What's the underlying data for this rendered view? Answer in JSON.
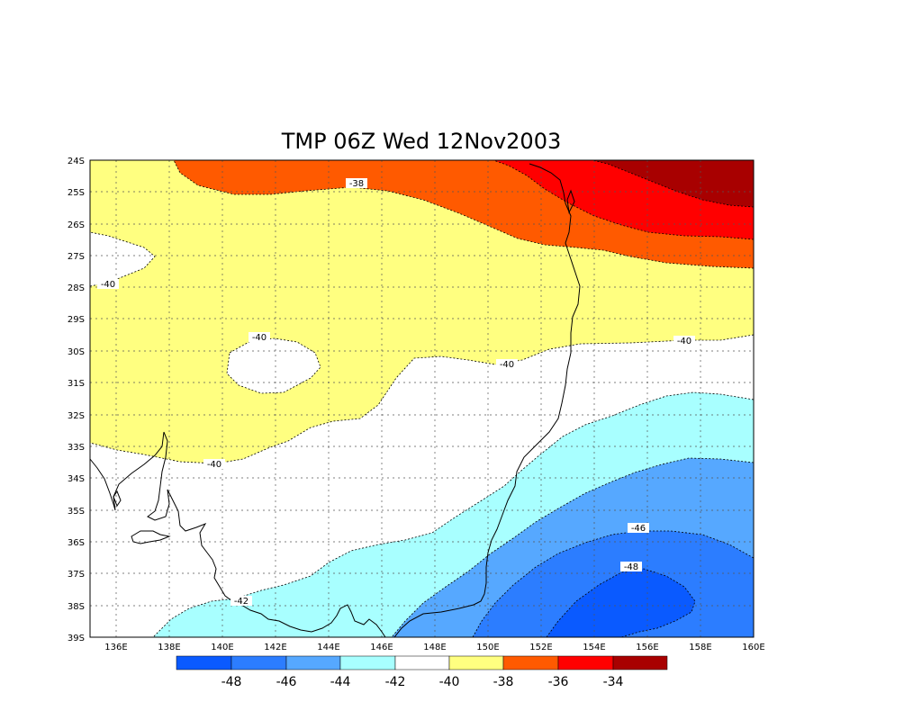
{
  "title": "TMP 06Z Wed 12Nov2003",
  "axes": {
    "y_ticks": [
      "24S",
      "25S",
      "26S",
      "27S",
      "28S",
      "29S",
      "30S",
      "31S",
      "32S",
      "33S",
      "34S",
      "35S",
      "36S",
      "37S",
      "38S",
      "39S"
    ],
    "x_ticks": [
      "136E",
      "138E",
      "140E",
      "142E",
      "144E",
      "146E",
      "148E",
      "150E",
      "152E",
      "154E",
      "156E",
      "158E",
      "160E"
    ]
  },
  "contour_labels": {
    "m38": "-38",
    "m40_west": "-40",
    "m40_island": "-40",
    "m40_center": "-40",
    "m40_east": "-40",
    "m40_south": "-40",
    "m42": "-42",
    "m46": "-46",
    "m48": "-48"
  },
  "colorbar": {
    "labels": [
      "-48",
      "-46",
      "-44",
      "-42",
      "-40",
      "-38",
      "-36",
      "-34"
    ],
    "colors": [
      "#0a5aff",
      "#2c7dff",
      "#56a8ff",
      "#a8ffff",
      "#ffffff",
      "#ffff80",
      "#ff5a00",
      "#ff0000",
      "#a80000"
    ]
  },
  "colors": {
    "dark_red": "#a80000",
    "red": "#ff0000",
    "orange": "#ff5a00",
    "yellow": "#ffff80",
    "white": "#ffffff",
    "cyan": "#a8ffff",
    "light_blue": "#56a8ff",
    "mid_blue": "#2c7dff",
    "dark_blue": "#0a5aff"
  }
}
